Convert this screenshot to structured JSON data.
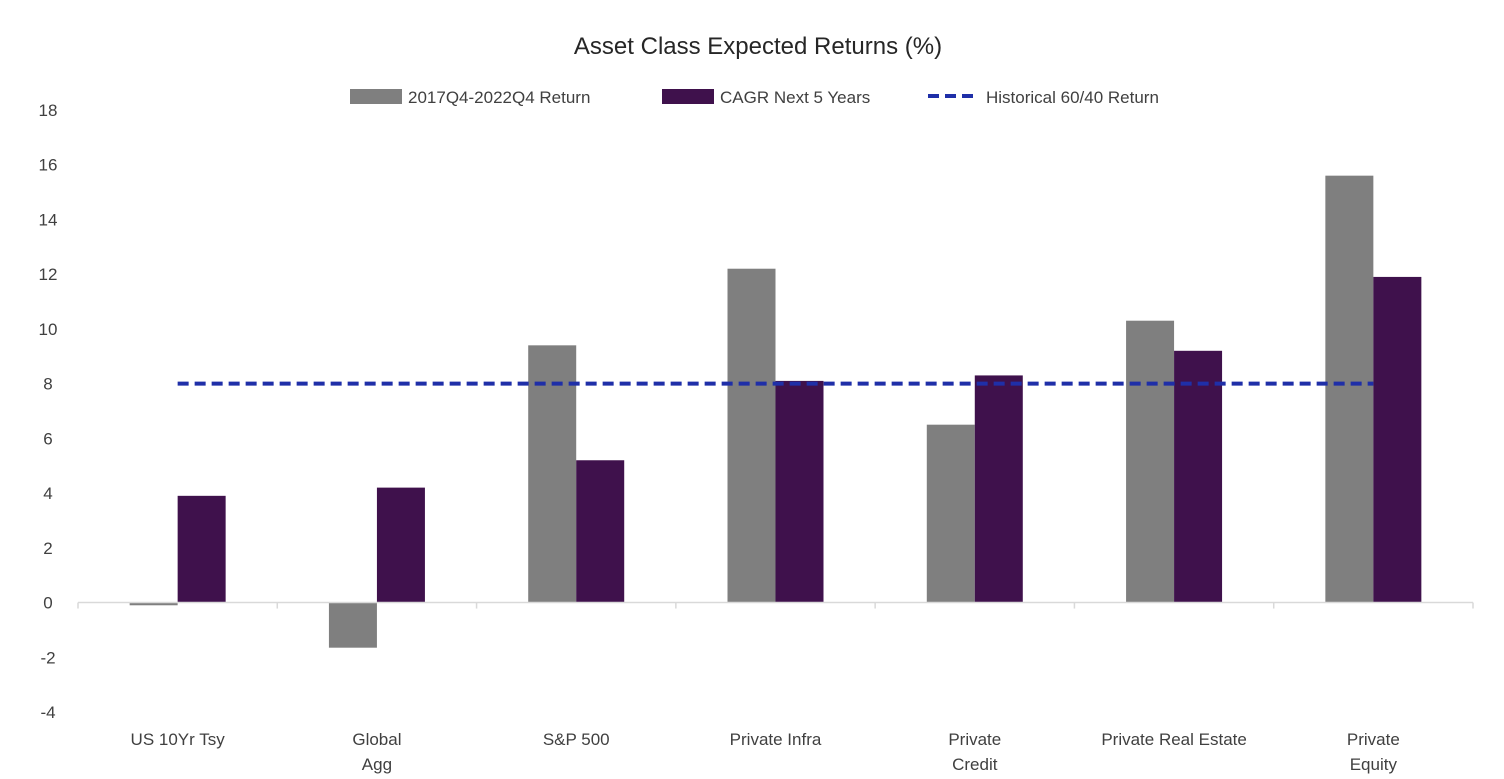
{
  "chart_data": {
    "type": "bar",
    "title": "Asset Class Expected Returns (%)",
    "xlabel": "",
    "ylabel": "",
    "ylim": [
      -4,
      18
    ],
    "yticks": [
      18,
      16,
      14,
      12,
      10,
      8,
      6,
      4,
      2,
      0,
      -2,
      -4
    ],
    "grid": false,
    "legend_position": "top",
    "categories": [
      [
        "US 10Yr Tsy"
      ],
      [
        "Global",
        "Agg"
      ],
      [
        "S&P 500"
      ],
      [
        "Private Infra"
      ],
      [
        "Private",
        "Credit"
      ],
      [
        "Private Real Estate"
      ],
      [
        "Private",
        "Equity"
      ]
    ],
    "series": [
      {
        "name": "2017Q4-2022Q4 Return",
        "type": "bar",
        "color": "#7f7f7f",
        "values": [
          -0.1,
          -1.65,
          9.4,
          12.2,
          6.5,
          10.3,
          15.6
        ]
      },
      {
        "name": "CAGR Next 5 Years",
        "type": "bar",
        "color": "#3f114c",
        "values": [
          3.9,
          4.2,
          5.2,
          8.1,
          8.3,
          9.2,
          11.9
        ]
      },
      {
        "name": "Historical 60/40 Return",
        "type": "line",
        "style": "dashed",
        "color": "#1f2fa8",
        "values": [
          8,
          8,
          8,
          8,
          8,
          8,
          8
        ]
      }
    ]
  }
}
